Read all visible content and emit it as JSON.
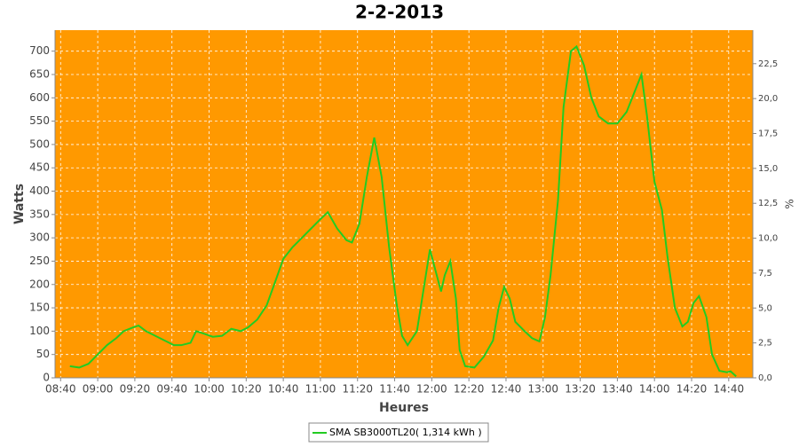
{
  "chart_data": {
    "type": "line",
    "title": "2-2-2013",
    "x_label": "Heures",
    "y_label": "Watts",
    "y2_label": "%",
    "grid": true,
    "background": "#ff9900",
    "xlim": [
      517,
      893
    ],
    "xticks": [
      {
        "value": 520,
        "label": "08:40"
      },
      {
        "value": 540,
        "label": "09:00"
      },
      {
        "value": 560,
        "label": "09:20"
      },
      {
        "value": 580,
        "label": "09:40"
      },
      {
        "value": 600,
        "label": "10:00"
      },
      {
        "value": 620,
        "label": "10:20"
      },
      {
        "value": 640,
        "label": "10:40"
      },
      {
        "value": 660,
        "label": "11:00"
      },
      {
        "value": 680,
        "label": "11:20"
      },
      {
        "value": 700,
        "label": "11:40"
      },
      {
        "value": 720,
        "label": "12:00"
      },
      {
        "value": 740,
        "label": "12:20"
      },
      {
        "value": 760,
        "label": "12:40"
      },
      {
        "value": 780,
        "label": "13:00"
      },
      {
        "value": 800,
        "label": "13:20"
      },
      {
        "value": 820,
        "label": "13:40"
      },
      {
        "value": 840,
        "label": "14:00"
      },
      {
        "value": 860,
        "label": "14:20"
      },
      {
        "value": 880,
        "label": "14:40"
      }
    ],
    "ylim": [
      0,
      745
    ],
    "yticks": [
      0,
      50,
      100,
      150,
      200,
      250,
      300,
      350,
      400,
      450,
      500,
      550,
      600,
      650,
      700
    ],
    "y2lim": [
      0,
      24.9
    ],
    "y2ticks": [
      {
        "value": 0,
        "label": "0,0"
      },
      {
        "value": 2.5,
        "label": "2,5"
      },
      {
        "value": 5,
        "label": "5,0"
      },
      {
        "value": 7.5,
        "label": "7,5"
      },
      {
        "value": 10,
        "label": "10,0"
      },
      {
        "value": 12.5,
        "label": "12,5"
      },
      {
        "value": 15,
        "label": "15,0"
      },
      {
        "value": 17.5,
        "label": "17,5"
      },
      {
        "value": 20,
        "label": "20,0"
      },
      {
        "value": 22.5,
        "label": "22,5"
      }
    ],
    "x": [
      525,
      530,
      535,
      540,
      545,
      550,
      554,
      559,
      562,
      566,
      571,
      576,
      581,
      585,
      590,
      593,
      597,
      602,
      607,
      612,
      617,
      621,
      626,
      631,
      636,
      640,
      645,
      650,
      655,
      660,
      664,
      669,
      674,
      677,
      681,
      685,
      689,
      693,
      697,
      701,
      704,
      707,
      712,
      716,
      719,
      722,
      725,
      727,
      730,
      733,
      735,
      738,
      743,
      748,
      753,
      756,
      759,
      762,
      765,
      770,
      774,
      778,
      781,
      784,
      788,
      791,
      795,
      798,
      802,
      806,
      810,
      815,
      820,
      825,
      829,
      833,
      836,
      840,
      844,
      847,
      851,
      855,
      858,
      861,
      864,
      868,
      871,
      875,
      879,
      881,
      884
    ],
    "series": [
      {
        "name": "SMA SB3000TL20( 1,314 kWh )",
        "color": "#22cc22",
        "values": [
          25,
          22,
          30,
          50,
          70,
          85,
          100,
          108,
          112,
          100,
          90,
          80,
          70,
          70,
          75,
          100,
          95,
          88,
          90,
          105,
          100,
          108,
          125,
          155,
          210,
          255,
          280,
          300,
          320,
          340,
          355,
          320,
          295,
          290,
          330,
          430,
          515,
          430,
          280,
          160,
          90,
          70,
          100,
          200,
          275,
          230,
          185,
          220,
          250,
          170,
          60,
          25,
          22,
          45,
          80,
          150,
          195,
          170,
          120,
          100,
          85,
          78,
          130,
          220,
          380,
          580,
          700,
          710,
          670,
          600,
          560,
          545,
          545,
          570,
          610,
          650,
          560,
          420,
          360,
          260,
          150,
          110,
          120,
          160,
          175,
          130,
          50,
          15,
          12,
          14,
          3
        ]
      }
    ]
  }
}
